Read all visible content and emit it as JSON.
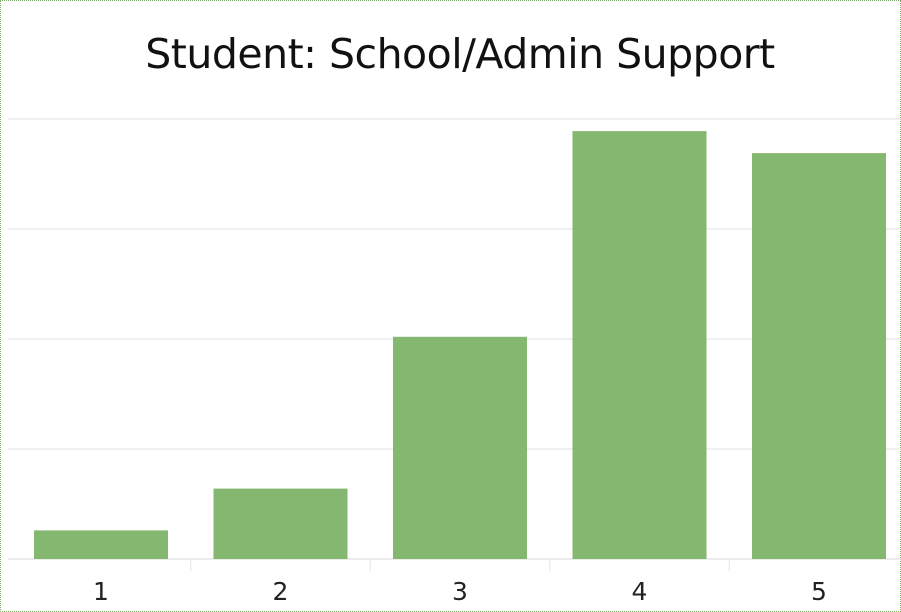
{
  "colors": {
    "bar": "#84b76f",
    "grid": "#e6e6e6",
    "frame": "#7fb069"
  },
  "chart_data": {
    "type": "bar",
    "title": "Student:  School/Admin Support",
    "xlabel": "",
    "ylabel": "",
    "categories": [
      "1",
      "2",
      "3",
      "4",
      "5"
    ],
    "values": [
      2.6,
      6.4,
      20.2,
      38.9,
      36.9
    ],
    "ylim": [
      0,
      40
    ],
    "grid": true,
    "y_tick_values": [
      0,
      10,
      20,
      30,
      40
    ],
    "y_tick_labels_visible": false,
    "legend": "none"
  }
}
